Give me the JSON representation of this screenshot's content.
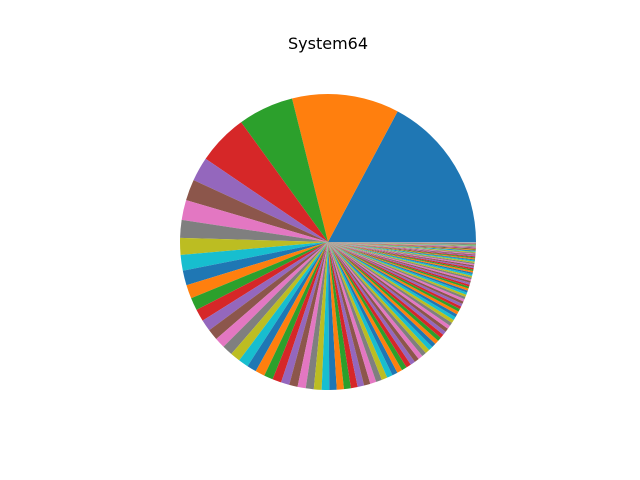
{
  "chart_data": {
    "type": "pie",
    "title": "System64",
    "start_angle_deg": 0,
    "direction": "counterclockwise",
    "palette": [
      "#1f77b4",
      "#ff7f0e",
      "#2ca02c",
      "#d62728",
      "#9467bd",
      "#8c564b",
      "#e377c2",
      "#7f7f7f",
      "#bcbd22",
      "#17becf"
    ],
    "values": [
      15.0,
      10.2,
      5.3,
      4.8,
      2.3,
      2.0,
      1.9,
      1.7,
      1.6,
      1.5,
      1.4,
      1.3,
      1.2,
      1.15,
      1.1,
      1.05,
      1.0,
      1.0,
      0.95,
      0.95,
      0.9,
      0.9,
      0.85,
      0.85,
      0.8,
      0.8,
      0.78,
      0.76,
      0.74,
      0.72,
      0.7,
      0.68,
      0.66,
      0.64,
      0.62,
      0.6,
      0.58,
      0.56,
      0.55,
      0.54,
      0.52,
      0.5,
      0.49,
      0.48,
      0.46,
      0.45,
      0.44,
      0.43,
      0.42,
      0.41,
      0.4,
      0.39,
      0.38,
      0.37,
      0.36,
      0.35,
      0.34,
      0.33,
      0.32,
      0.31,
      0.3,
      0.29,
      0.28,
      0.27,
      0.26,
      0.25,
      0.24,
      0.23,
      0.22,
      0.21,
      0.2,
      0.2,
      0.19,
      0.19,
      0.18,
      0.18,
      0.17,
      0.17,
      0.16,
      0.16,
      0.15,
      0.15,
      0.14,
      0.14,
      0.13,
      0.13,
      0.12,
      0.12,
      0.11,
      0.11,
      0.1,
      0.1,
      0.1,
      0.09,
      0.09,
      0.09,
      0.08,
      0.08,
      0.08,
      0.07,
      0.07,
      0.07,
      0.06,
      0.06,
      0.06,
      0.05,
      0.05,
      0.05,
      0.05,
      0.04,
      0.04,
      0.04,
      0.04,
      0.03,
      0.03,
      0.03,
      0.03,
      0.02,
      0.02,
      0.02
    ]
  }
}
